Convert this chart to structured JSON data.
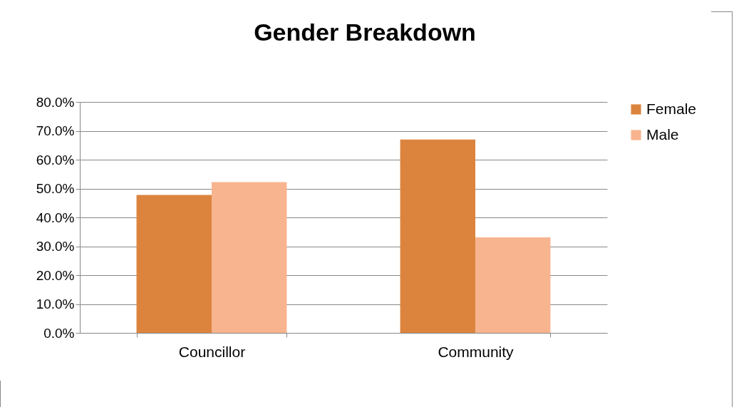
{
  "chart_data": {
    "type": "bar",
    "title": "Gender Breakdown",
    "categories": [
      "Councillor",
      "Community"
    ],
    "series": [
      {
        "name": "Female",
        "color": "#dc843e",
        "values": [
          47.8,
          67.0
        ]
      },
      {
        "name": "Male",
        "color": "#f8b48f",
        "values": [
          52.2,
          33.1
        ]
      }
    ],
    "ylim": [
      0,
      80
    ],
    "yticks": [
      {
        "value": 0,
        "label": "0.0%"
      },
      {
        "value": 10,
        "label": "10.0%"
      },
      {
        "value": 20,
        "label": "20.0%"
      },
      {
        "value": 30,
        "label": "30.0%"
      },
      {
        "value": 40,
        "label": "40.0%"
      },
      {
        "value": 50,
        "label": "50.0%"
      },
      {
        "value": 60,
        "label": "60.0%"
      },
      {
        "value": 70,
        "label": "70.0%"
      },
      {
        "value": 80,
        "label": "80.0%"
      }
    ],
    "grid": "y",
    "legend": "right"
  }
}
